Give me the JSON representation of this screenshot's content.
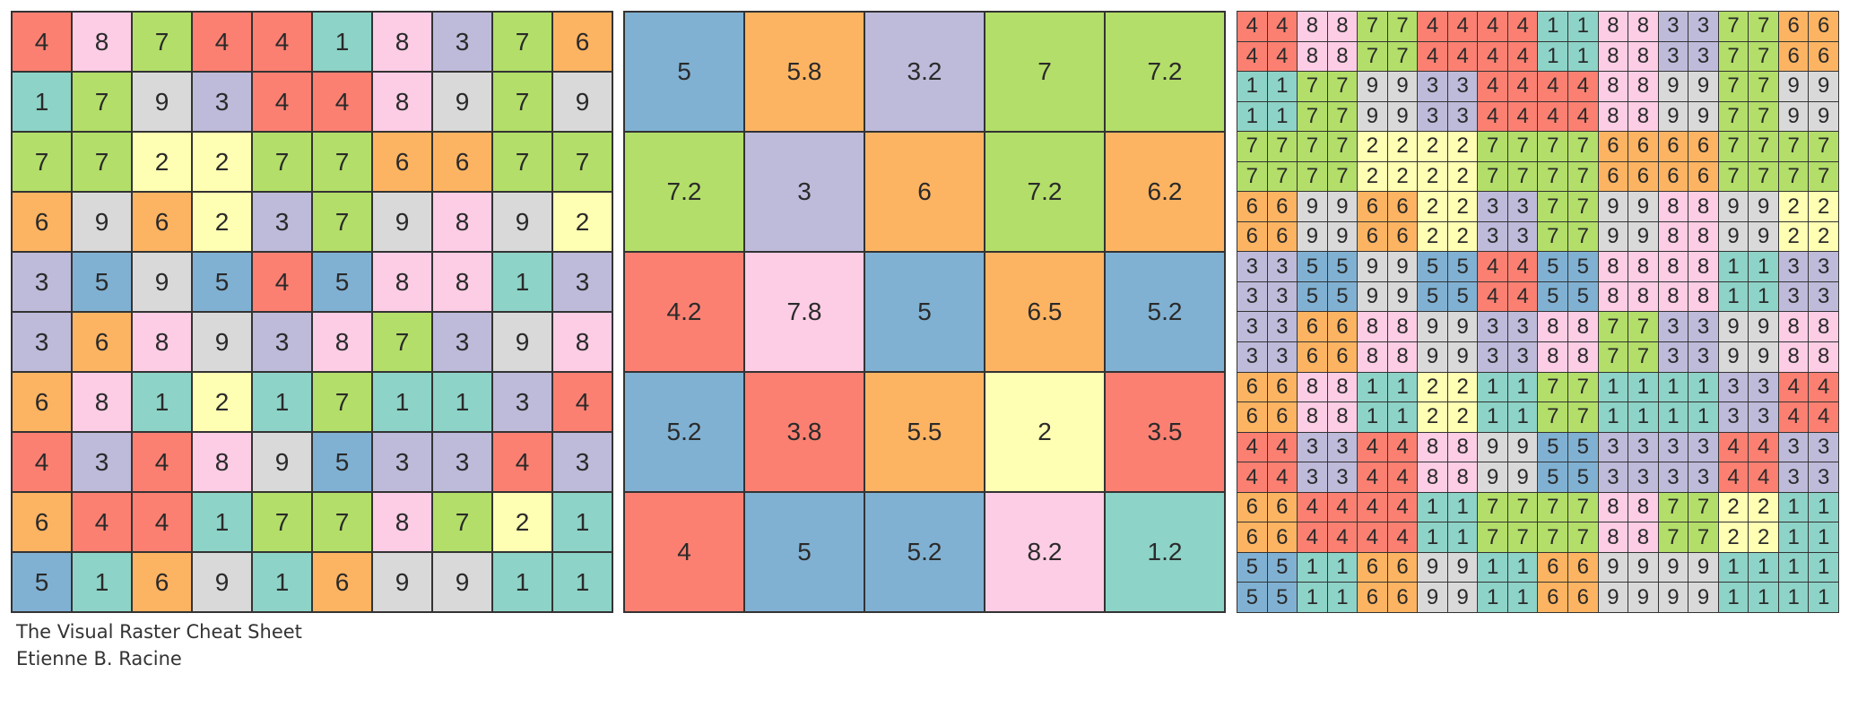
{
  "palette": {
    "1": "#8dd3c7",
    "2": "#ffffb3",
    "3": "#bebada",
    "4": "#fb8072",
    "5": "#80b1d3",
    "6": "#fdb462",
    "7": "#b3de69",
    "8": "#fccde5",
    "9": "#d9d9d9"
  },
  "caption": {
    "title": "The Visual Raster Cheat Sheet",
    "author": "Etienne B. Racine"
  },
  "panels": [
    {
      "name": "original-raster",
      "rows": [
        [
          "4",
          "8",
          "7",
          "4",
          "4",
          "1",
          "8",
          "3",
          "7",
          "6"
        ],
        [
          "1",
          "7",
          "9",
          "3",
          "4",
          "4",
          "8",
          "9",
          "7",
          "9"
        ],
        [
          "7",
          "7",
          "2",
          "2",
          "7",
          "7",
          "6",
          "6",
          "7",
          "7"
        ],
        [
          "6",
          "9",
          "6",
          "2",
          "3",
          "7",
          "9",
          "8",
          "9",
          "2"
        ],
        [
          "3",
          "5",
          "9",
          "5",
          "4",
          "5",
          "8",
          "8",
          "1",
          "3"
        ],
        [
          "3",
          "6",
          "8",
          "9",
          "3",
          "8",
          "7",
          "3",
          "9",
          "8"
        ],
        [
          "6",
          "8",
          "1",
          "2",
          "1",
          "7",
          "1",
          "1",
          "3",
          "4"
        ],
        [
          "4",
          "3",
          "4",
          "8",
          "9",
          "5",
          "3",
          "3",
          "4",
          "3"
        ],
        [
          "6",
          "4",
          "4",
          "1",
          "7",
          "7",
          "8",
          "7",
          "2",
          "1"
        ],
        [
          "5",
          "1",
          "6",
          "9",
          "1",
          "6",
          "9",
          "9",
          "1",
          "1"
        ]
      ],
      "colors": [
        [
          "4",
          "8",
          "7",
          "4",
          "4",
          "1",
          "8",
          "3",
          "7",
          "6"
        ],
        [
          "1",
          "7",
          "9",
          "3",
          "4",
          "4",
          "8",
          "9",
          "7",
          "9"
        ],
        [
          "7",
          "7",
          "2",
          "2",
          "7",
          "7",
          "6",
          "6",
          "7",
          "7"
        ],
        [
          "6",
          "9",
          "6",
          "2",
          "3",
          "7",
          "9",
          "8",
          "9",
          "2"
        ],
        [
          "3",
          "5",
          "9",
          "5",
          "4",
          "5",
          "8",
          "8",
          "1",
          "3"
        ],
        [
          "3",
          "6",
          "8",
          "9",
          "3",
          "8",
          "7",
          "3",
          "9",
          "8"
        ],
        [
          "6",
          "8",
          "1",
          "2",
          "1",
          "7",
          "1",
          "1",
          "3",
          "4"
        ],
        [
          "4",
          "3",
          "4",
          "8",
          "9",
          "5",
          "3",
          "3",
          "4",
          "3"
        ],
        [
          "6",
          "4",
          "4",
          "1",
          "7",
          "7",
          "8",
          "7",
          "2",
          "1"
        ],
        [
          "5",
          "1",
          "6",
          "9",
          "1",
          "6",
          "9",
          "9",
          "1",
          "1"
        ]
      ]
    },
    {
      "name": "aggregated-raster",
      "rows": [
        [
          "5",
          "5.8",
          "3.2",
          "7",
          "7.2"
        ],
        [
          "7.2",
          "3",
          "6",
          "7.2",
          "6.2"
        ],
        [
          "4.2",
          "7.8",
          "5",
          "6.5",
          "5.2"
        ],
        [
          "5.2",
          "3.8",
          "5.5",
          "2",
          "3.5"
        ],
        [
          "4",
          "5",
          "5.2",
          "8.2",
          "1.2"
        ]
      ],
      "colors": [
        [
          "5",
          "6",
          "3",
          "7",
          "7"
        ],
        [
          "7",
          "3",
          "6",
          "7",
          "6"
        ],
        [
          "4",
          "8",
          "5",
          "6",
          "5"
        ],
        [
          "5",
          "4",
          "6",
          "2",
          "4"
        ],
        [
          "4",
          "5",
          "5",
          "8",
          "1"
        ]
      ]
    },
    {
      "name": "disaggregated-raster",
      "rows": [
        [
          "4",
          "4",
          "8",
          "8",
          "7",
          "7",
          "4",
          "4",
          "4",
          "4",
          "1",
          "1",
          "8",
          "8",
          "3",
          "3",
          "7",
          "7",
          "6",
          "6"
        ],
        [
          "4",
          "4",
          "8",
          "8",
          "7",
          "7",
          "4",
          "4",
          "4",
          "4",
          "1",
          "1",
          "8",
          "8",
          "3",
          "3",
          "7",
          "7",
          "6",
          "6"
        ],
        [
          "1",
          "1",
          "7",
          "7",
          "9",
          "9",
          "3",
          "3",
          "4",
          "4",
          "4",
          "4",
          "8",
          "8",
          "9",
          "9",
          "7",
          "7",
          "9",
          "9"
        ],
        [
          "1",
          "1",
          "7",
          "7",
          "9",
          "9",
          "3",
          "3",
          "4",
          "4",
          "4",
          "4",
          "8",
          "8",
          "9",
          "9",
          "7",
          "7",
          "9",
          "9"
        ],
        [
          "7",
          "7",
          "7",
          "7",
          "2",
          "2",
          "2",
          "2",
          "7",
          "7",
          "7",
          "7",
          "6",
          "6",
          "6",
          "6",
          "7",
          "7",
          "7",
          "7"
        ],
        [
          "7",
          "7",
          "7",
          "7",
          "2",
          "2",
          "2",
          "2",
          "7",
          "7",
          "7",
          "7",
          "6",
          "6",
          "6",
          "6",
          "7",
          "7",
          "7",
          "7"
        ],
        [
          "6",
          "6",
          "9",
          "9",
          "6",
          "6",
          "2",
          "2",
          "3",
          "3",
          "7",
          "7",
          "9",
          "9",
          "8",
          "8",
          "9",
          "9",
          "2",
          "2"
        ],
        [
          "6",
          "6",
          "9",
          "9",
          "6",
          "6",
          "2",
          "2",
          "3",
          "3",
          "7",
          "7",
          "9",
          "9",
          "8",
          "8",
          "9",
          "9",
          "2",
          "2"
        ],
        [
          "3",
          "3",
          "5",
          "5",
          "9",
          "9",
          "5",
          "5",
          "4",
          "4",
          "5",
          "5",
          "8",
          "8",
          "8",
          "8",
          "1",
          "1",
          "3",
          "3"
        ],
        [
          "3",
          "3",
          "5",
          "5",
          "9",
          "9",
          "5",
          "5",
          "4",
          "4",
          "5",
          "5",
          "8",
          "8",
          "8",
          "8",
          "1",
          "1",
          "3",
          "3"
        ],
        [
          "3",
          "3",
          "6",
          "6",
          "8",
          "8",
          "9",
          "9",
          "3",
          "3",
          "8",
          "8",
          "7",
          "7",
          "3",
          "3",
          "9",
          "9",
          "8",
          "8"
        ],
        [
          "3",
          "3",
          "6",
          "6",
          "8",
          "8",
          "9",
          "9",
          "3",
          "3",
          "8",
          "8",
          "7",
          "7",
          "3",
          "3",
          "9",
          "9",
          "8",
          "8"
        ],
        [
          "6",
          "6",
          "8",
          "8",
          "1",
          "1",
          "2",
          "2",
          "1",
          "1",
          "7",
          "7",
          "1",
          "1",
          "1",
          "1",
          "3",
          "3",
          "4",
          "4"
        ],
        [
          "6",
          "6",
          "8",
          "8",
          "1",
          "1",
          "2",
          "2",
          "1",
          "1",
          "7",
          "7",
          "1",
          "1",
          "1",
          "1",
          "3",
          "3",
          "4",
          "4"
        ],
        [
          "4",
          "4",
          "3",
          "3",
          "4",
          "4",
          "8",
          "8",
          "9",
          "9",
          "5",
          "5",
          "3",
          "3",
          "3",
          "3",
          "4",
          "4",
          "3",
          "3"
        ],
        [
          "4",
          "4",
          "3",
          "3",
          "4",
          "4",
          "8",
          "8",
          "9",
          "9",
          "5",
          "5",
          "3",
          "3",
          "3",
          "3",
          "4",
          "4",
          "3",
          "3"
        ],
        [
          "6",
          "6",
          "4",
          "4",
          "4",
          "4",
          "1",
          "1",
          "7",
          "7",
          "7",
          "7",
          "8",
          "8",
          "7",
          "7",
          "2",
          "2",
          "1",
          "1"
        ],
        [
          "6",
          "6",
          "4",
          "4",
          "4",
          "4",
          "1",
          "1",
          "7",
          "7",
          "7",
          "7",
          "8",
          "8",
          "7",
          "7",
          "2",
          "2",
          "1",
          "1"
        ],
        [
          "5",
          "5",
          "1",
          "1",
          "6",
          "6",
          "9",
          "9",
          "1",
          "1",
          "6",
          "6",
          "9",
          "9",
          "9",
          "9",
          "1",
          "1",
          "1",
          "1"
        ],
        [
          "5",
          "5",
          "1",
          "1",
          "6",
          "6",
          "9",
          "9",
          "1",
          "1",
          "6",
          "6",
          "9",
          "9",
          "9",
          "9",
          "1",
          "1",
          "1",
          "1"
        ]
      ],
      "colors": [
        [
          "4",
          "4",
          "8",
          "8",
          "7",
          "7",
          "4",
          "4",
          "4",
          "4",
          "1",
          "1",
          "8",
          "8",
          "3",
          "3",
          "7",
          "7",
          "6",
          "6"
        ],
        [
          "4",
          "4",
          "8",
          "8",
          "7",
          "7",
          "4",
          "4",
          "4",
          "4",
          "1",
          "1",
          "8",
          "8",
          "3",
          "3",
          "7",
          "7",
          "6",
          "6"
        ],
        [
          "1",
          "1",
          "7",
          "7",
          "9",
          "9",
          "3",
          "3",
          "4",
          "4",
          "4",
          "4",
          "8",
          "8",
          "9",
          "9",
          "7",
          "7",
          "9",
          "9"
        ],
        [
          "1",
          "1",
          "7",
          "7",
          "9",
          "9",
          "3",
          "3",
          "4",
          "4",
          "4",
          "4",
          "8",
          "8",
          "9",
          "9",
          "7",
          "7",
          "9",
          "9"
        ],
        [
          "7",
          "7",
          "7",
          "7",
          "2",
          "2",
          "2",
          "2",
          "7",
          "7",
          "7",
          "7",
          "6",
          "6",
          "6",
          "6",
          "7",
          "7",
          "7",
          "7"
        ],
        [
          "7",
          "7",
          "7",
          "7",
          "2",
          "2",
          "2",
          "2",
          "7",
          "7",
          "7",
          "7",
          "6",
          "6",
          "6",
          "6",
          "7",
          "7",
          "7",
          "7"
        ],
        [
          "6",
          "6",
          "9",
          "9",
          "6",
          "6",
          "2",
          "2",
          "3",
          "3",
          "7",
          "7",
          "9",
          "9",
          "8",
          "8",
          "9",
          "9",
          "2",
          "2"
        ],
        [
          "6",
          "6",
          "9",
          "9",
          "6",
          "6",
          "2",
          "2",
          "3",
          "3",
          "7",
          "7",
          "9",
          "9",
          "8",
          "8",
          "9",
          "9",
          "2",
          "2"
        ],
        [
          "3",
          "3",
          "5",
          "5",
          "9",
          "9",
          "5",
          "5",
          "4",
          "4",
          "5",
          "5",
          "8",
          "8",
          "8",
          "8",
          "1",
          "1",
          "3",
          "3"
        ],
        [
          "3",
          "3",
          "5",
          "5",
          "9",
          "9",
          "5",
          "5",
          "4",
          "4",
          "5",
          "5",
          "8",
          "8",
          "8",
          "8",
          "1",
          "1",
          "3",
          "3"
        ],
        [
          "3",
          "3",
          "6",
          "6",
          "8",
          "8",
          "9",
          "9",
          "3",
          "3",
          "8",
          "8",
          "7",
          "7",
          "3",
          "3",
          "9",
          "9",
          "8",
          "8"
        ],
        [
          "3",
          "3",
          "6",
          "6",
          "8",
          "8",
          "9",
          "9",
          "3",
          "3",
          "8",
          "8",
          "7",
          "7",
          "3",
          "3",
          "9",
          "9",
          "8",
          "8"
        ],
        [
          "6",
          "6",
          "8",
          "8",
          "1",
          "1",
          "2",
          "2",
          "1",
          "1",
          "7",
          "7",
          "1",
          "1",
          "1",
          "1",
          "3",
          "3",
          "4",
          "4"
        ],
        [
          "6",
          "6",
          "8",
          "8",
          "1",
          "1",
          "2",
          "2",
          "1",
          "1",
          "7",
          "7",
          "1",
          "1",
          "1",
          "1",
          "3",
          "3",
          "4",
          "4"
        ],
        [
          "4",
          "4",
          "3",
          "3",
          "4",
          "4",
          "8",
          "8",
          "9",
          "9",
          "5",
          "5",
          "3",
          "3",
          "3",
          "3",
          "4",
          "4",
          "3",
          "3"
        ],
        [
          "4",
          "4",
          "3",
          "3",
          "4",
          "4",
          "8",
          "8",
          "9",
          "9",
          "5",
          "5",
          "3",
          "3",
          "3",
          "3",
          "4",
          "4",
          "3",
          "3"
        ],
        [
          "6",
          "6",
          "4",
          "4",
          "4",
          "4",
          "1",
          "1",
          "7",
          "7",
          "7",
          "7",
          "8",
          "8",
          "7",
          "7",
          "2",
          "2",
          "1",
          "1"
        ],
        [
          "6",
          "6",
          "4",
          "4",
          "4",
          "4",
          "1",
          "1",
          "7",
          "7",
          "7",
          "7",
          "8",
          "8",
          "7",
          "7",
          "2",
          "2",
          "1",
          "1"
        ],
        [
          "5",
          "5",
          "1",
          "1",
          "6",
          "6",
          "9",
          "9",
          "1",
          "1",
          "6",
          "6",
          "9",
          "9",
          "9",
          "9",
          "1",
          "1",
          "1",
          "1"
        ],
        [
          "5",
          "5",
          "1",
          "1",
          "6",
          "6",
          "9",
          "9",
          "1",
          "1",
          "6",
          "6",
          "9",
          "9",
          "9",
          "9",
          "1",
          "1",
          "1",
          "1"
        ]
      ]
    }
  ]
}
